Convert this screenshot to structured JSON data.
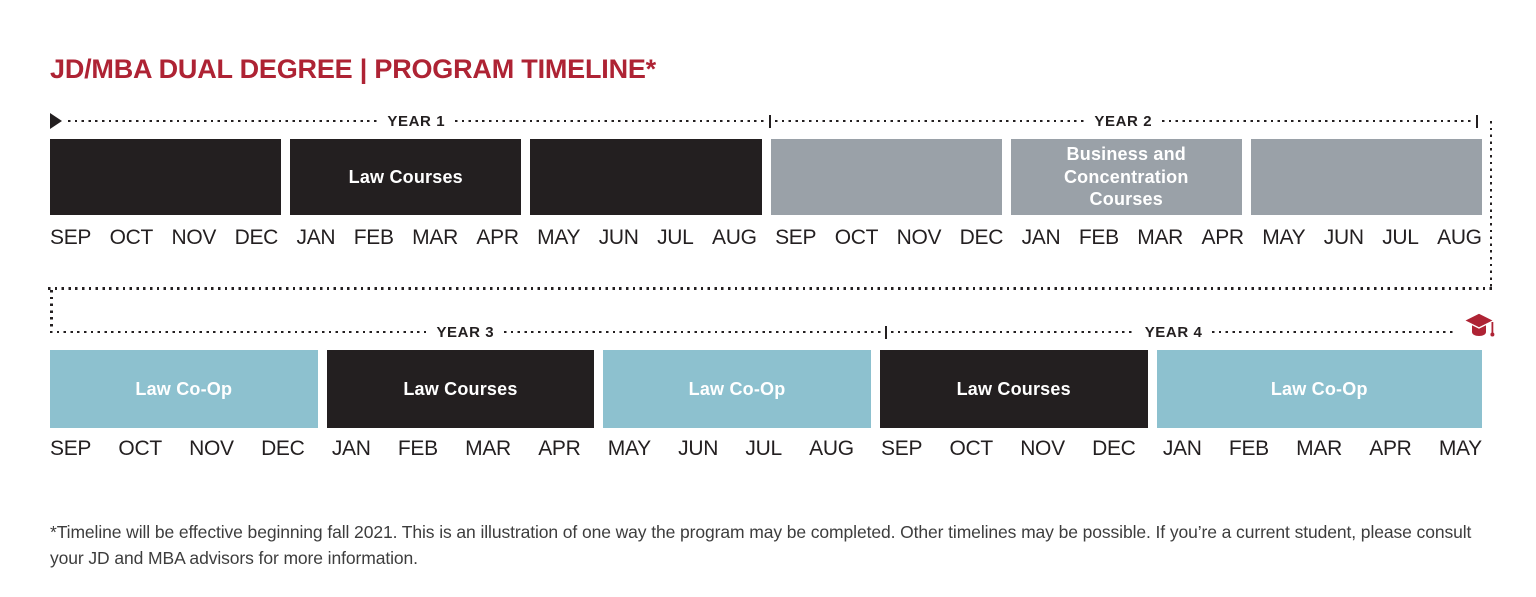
{
  "title": "JD/MBA DUAL DEGREE | PROGRAM TIMELINE*",
  "colors": {
    "accent_red": "#ae2334",
    "black_block": "#231f20",
    "gray_block": "#9aa1a8",
    "blue_block": "#8dc1cf",
    "text_dark": "#231f20"
  },
  "icons": {
    "start_marker": "play-triangle",
    "end_marker": "graduation-cap"
  },
  "timeline_top": {
    "year_labels": [
      "YEAR 1",
      "YEAR 2"
    ],
    "blocks": [
      {
        "label": "",
        "type": "law-dark",
        "months": 4
      },
      {
        "label": "Law Courses",
        "type": "law-dark",
        "months": 4
      },
      {
        "label": "",
        "type": "law-dark",
        "months": 4
      },
      {
        "label": "",
        "type": "business-gray",
        "months": 4
      },
      {
        "label": "Business and Concentration Courses",
        "type": "business-gray",
        "months": 4
      },
      {
        "label": "",
        "type": "business-gray",
        "months": 4
      }
    ],
    "months": [
      "SEP",
      "OCT",
      "NOV",
      "DEC",
      "JAN",
      "FEB",
      "MAR",
      "APR",
      "MAY",
      "JUN",
      "JUL",
      "AUG",
      "SEP",
      "OCT",
      "NOV",
      "DEC",
      "JAN",
      "FEB",
      "MAR",
      "APR",
      "MAY",
      "JUN",
      "JUL",
      "AUG"
    ]
  },
  "timeline_bottom": {
    "year_labels": [
      "YEAR 3",
      "YEAR 4"
    ],
    "blocks": [
      {
        "label": "Law Co-Op",
        "type": "coop-blue",
        "months": 4
      },
      {
        "label": "Law Courses",
        "type": "law-dark",
        "months": 4
      },
      {
        "label": "Law Co-Op",
        "type": "coop-blue",
        "months": 4
      },
      {
        "label": "Law Courses",
        "type": "law-dark",
        "months": 4
      },
      {
        "label": "Law Co-Op",
        "type": "coop-blue",
        "months": 5
      }
    ],
    "months": [
      "SEP",
      "OCT",
      "NOV",
      "DEC",
      "JAN",
      "FEB",
      "MAR",
      "APR",
      "MAY",
      "JUN",
      "JUL",
      "AUG",
      "SEP",
      "OCT",
      "NOV",
      "DEC",
      "JAN",
      "FEB",
      "MAR",
      "APR",
      "MAY"
    ]
  },
  "footnote": "*Timeline will be effective beginning fall 2021. This is an illustration of one way the program may be completed. Other timelines may be possible. If you’re a current student, please consult your JD and MBA advisors for more information."
}
